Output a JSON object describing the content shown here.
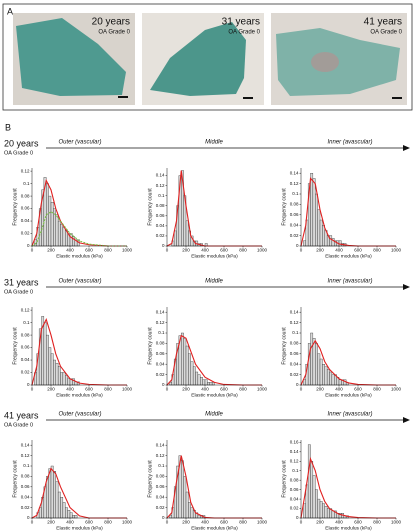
{
  "panel_a": {
    "label": "A",
    "images": [
      {
        "age": "20 years",
        "grade": "OA Grade 0"
      },
      {
        "age": "31 years",
        "grade": "OA Grade 0"
      },
      {
        "age": "41 years",
        "grade": "OA Grade 0"
      }
    ]
  },
  "panel_b": {
    "label": "B",
    "rows": [
      {
        "age": "20 years",
        "grade": "OA Grade 0",
        "zones": [
          "Outer (vascular)",
          "Middle",
          "Inner (avascular)"
        ]
      },
      {
        "age": "31 years",
        "grade": "OA Grade 0",
        "zones": [
          "Outer (vascular)",
          "Middle",
          "Inner (avascular)"
        ]
      },
      {
        "age": "41 years",
        "grade": "OA Grade 0",
        "zones": [
          "Outer (vascular)",
          "Middle",
          "Inner (avascular)"
        ]
      }
    ]
  },
  "chart_data": [
    {
      "type": "histogram",
      "xlabel": "Elastic modulus (kPa)",
      "ylabel": "Frequency count",
      "color": "#d9d9d9",
      "bins": [
        0,
        25,
        50,
        75,
        100,
        125,
        150,
        175,
        200,
        225,
        250,
        275,
        300,
        325,
        350,
        375,
        400,
        425,
        450,
        475,
        500
      ],
      "counts": [
        0,
        0.01,
        0.03,
        0.06,
        0.09,
        0.11,
        0.1,
        0.08,
        0.07,
        0.06,
        0.05,
        0.04,
        0.035,
        0.03,
        0.025,
        0.02,
        0.02,
        0.015,
        0.01,
        0.01
      ],
      "fits": [
        {
          "color": "#e02020",
          "x": [
            0,
            50,
            100,
            150,
            200,
            250,
            300,
            400,
            500,
            600,
            800,
            1000
          ],
          "y": [
            0,
            0.02,
            0.07,
            0.105,
            0.09,
            0.06,
            0.04,
            0.015,
            0.005,
            0.002,
            0,
            0
          ]
        },
        {
          "color": "#7ac143",
          "dashed": true,
          "x": [
            0,
            50,
            100,
            150,
            200,
            250,
            300,
            400,
            500,
            600,
            800,
            1000
          ],
          "y": [
            0,
            0.005,
            0.025,
            0.05,
            0.055,
            0.05,
            0.04,
            0.02,
            0.008,
            0.003,
            0,
            0
          ]
        }
      ],
      "xlim": [
        0,
        1000
      ],
      "xticks": [
        0,
        200,
        400,
        600,
        800,
        1000
      ],
      "ylim": [
        0,
        0.125
      ],
      "yticks": [
        0,
        0.02,
        0.04,
        0.06,
        0.08,
        0.1,
        0.12
      ]
    },
    {
      "type": "histogram",
      "xlabel": "Elastic modulus (kPa)",
      "ylabel": "Frequency count",
      "color": "#d9d9d9",
      "bins": [
        0,
        25,
        50,
        75,
        100,
        125,
        150,
        175,
        200,
        225,
        250,
        275,
        300,
        325,
        350,
        375,
        400,
        425,
        450,
        475,
        500
      ],
      "counts": [
        0,
        0,
        0.01,
        0.03,
        0.08,
        0.14,
        0.15,
        0.1,
        0.05,
        0.03,
        0.02,
        0.01,
        0.01,
        0.005,
        0.005,
        0,
        0.005,
        0,
        0,
        0
      ],
      "fits": [
        {
          "color": "#e02020",
          "x": [
            0,
            50,
            100,
            150,
            200,
            250,
            300,
            400,
            500,
            600,
            800,
            1000
          ],
          "y": [
            0,
            0.005,
            0.05,
            0.15,
            0.08,
            0.02,
            0.005,
            0,
            0,
            0,
            0,
            0
          ]
        }
      ],
      "xlim": [
        0,
        1000
      ],
      "xticks": [
        0,
        200,
        400,
        600,
        800,
        1000
      ],
      "ylim": [
        0,
        0.155
      ],
      "yticks": [
        0,
        0.02,
        0.04,
        0.06,
        0.08,
        0.1,
        0.12,
        0.14
      ]
    },
    {
      "type": "histogram",
      "xlabel": "Elastic modulus (kPa)",
      "ylabel": "Frequency count",
      "color": "#d9d9d9",
      "bins": [
        0,
        25,
        50,
        75,
        100,
        125,
        150,
        175,
        200,
        225,
        250,
        275,
        300,
        325,
        350,
        375,
        400,
        425,
        450,
        475,
        500
      ],
      "counts": [
        0,
        0.01,
        0.05,
        0.12,
        0.14,
        0.13,
        0.1,
        0.07,
        0.05,
        0.04,
        0.03,
        0.02,
        0.02,
        0.015,
        0.01,
        0.01,
        0.01,
        0.005,
        0.005,
        0
      ],
      "fits": [
        {
          "color": "#e02020",
          "x": [
            0,
            50,
            100,
            150,
            200,
            250,
            300,
            400,
            500,
            600,
            800,
            1000
          ],
          "y": [
            0,
            0.04,
            0.13,
            0.12,
            0.07,
            0.035,
            0.015,
            0.004,
            0.001,
            0,
            0,
            0
          ]
        }
      ],
      "xlim": [
        0,
        1000
      ],
      "xticks": [
        0,
        200,
        400,
        600,
        800,
        1000
      ],
      "ylim": [
        0,
        0.15
      ],
      "yticks": [
        0,
        0.02,
        0.04,
        0.06,
        0.08,
        0.1,
        0.12,
        0.14
      ]
    },
    {
      "type": "histogram",
      "xlabel": "Elastic modulus (kPa)",
      "ylabel": "Frequency count",
      "color": "#d9d9d9",
      "bins": [
        0,
        25,
        50,
        75,
        100,
        125,
        150,
        175,
        200,
        225,
        250,
        275,
        300,
        325,
        350,
        375,
        400,
        425,
        450,
        475,
        500
      ],
      "counts": [
        0,
        0.02,
        0.05,
        0.09,
        0.11,
        0.1,
        0.08,
        0.06,
        0.05,
        0.04,
        0.035,
        0.03,
        0.02,
        0.02,
        0.015,
        0.01,
        0.01,
        0.01,
        0.005,
        0.005
      ],
      "fits": [
        {
          "color": "#e02020",
          "x": [
            0,
            50,
            100,
            150,
            200,
            250,
            300,
            400,
            500,
            600,
            800,
            1000
          ],
          "y": [
            0,
            0.03,
            0.09,
            0.105,
            0.08,
            0.05,
            0.03,
            0.01,
            0.003,
            0.001,
            0,
            0
          ]
        }
      ],
      "xlim": [
        0,
        1000
      ],
      "xticks": [
        0,
        200,
        400,
        600,
        800,
        1000
      ],
      "ylim": [
        0,
        0.125
      ],
      "yticks": [
        0,
        0.02,
        0.04,
        0.06,
        0.08,
        0.1,
        0.12
      ]
    },
    {
      "type": "histogram",
      "xlabel": "Elastic modulus (kPa)",
      "ylabel": "Frequency count",
      "color": "#d9d9d9",
      "bins": [
        0,
        25,
        50,
        75,
        100,
        125,
        150,
        175,
        200,
        225,
        250,
        275,
        300,
        325,
        350,
        375,
        400,
        425,
        450,
        475,
        500
      ],
      "counts": [
        0,
        0.005,
        0.02,
        0.05,
        0.08,
        0.095,
        0.1,
        0.09,
        0.075,
        0.06,
        0.045,
        0.035,
        0.025,
        0.02,
        0.015,
        0.01,
        0.01,
        0.005,
        0.005,
        0.005
      ],
      "fits": [
        {
          "color": "#e02020",
          "x": [
            0,
            50,
            100,
            150,
            200,
            250,
            300,
            400,
            500,
            600,
            800,
            1000
          ],
          "y": [
            0,
            0.01,
            0.06,
            0.095,
            0.09,
            0.065,
            0.04,
            0.015,
            0.005,
            0.001,
            0,
            0
          ]
        }
      ],
      "xlim": [
        0,
        1000
      ],
      "xticks": [
        0,
        200,
        400,
        600,
        800,
        1000
      ],
      "ylim": [
        0,
        0.15
      ],
      "yticks": [
        0,
        0.02,
        0.04,
        0.06,
        0.08,
        0.1,
        0.12,
        0.14
      ]
    },
    {
      "type": "histogram",
      "xlabel": "Elastic modulus (kPa)",
      "ylabel": "Frequency count",
      "color": "#d9d9d9",
      "bins": [
        0,
        25,
        50,
        75,
        100,
        125,
        150,
        175,
        200,
        225,
        250,
        275,
        300,
        325,
        350,
        375,
        400,
        425,
        450,
        475,
        500
      ],
      "counts": [
        0,
        0.01,
        0.04,
        0.08,
        0.1,
        0.09,
        0.08,
        0.06,
        0.05,
        0.04,
        0.035,
        0.03,
        0.025,
        0.02,
        0.02,
        0.015,
        0.01,
        0.01,
        0.01,
        0.005
      ],
      "fits": [
        {
          "color": "#e02020",
          "x": [
            0,
            50,
            100,
            150,
            200,
            250,
            300,
            400,
            500,
            600,
            800,
            1000
          ],
          "y": [
            0,
            0.02,
            0.07,
            0.085,
            0.07,
            0.045,
            0.03,
            0.012,
            0.004,
            0.001,
            0,
            0
          ]
        }
      ],
      "xlim": [
        0,
        1000
      ],
      "xticks": [
        0,
        200,
        400,
        600,
        800,
        1000
      ],
      "ylim": [
        0,
        0.15
      ],
      "yticks": [
        0,
        0.02,
        0.04,
        0.06,
        0.08,
        0.1,
        0.12,
        0.14
      ]
    },
    {
      "type": "histogram",
      "xlabel": "Elastic modulus (kPa)",
      "ylabel": "Frequency count",
      "color": "#d9d9d9",
      "bins": [
        0,
        25,
        50,
        75,
        100,
        125,
        150,
        175,
        200,
        225,
        250,
        275,
        300,
        325,
        350,
        375,
        400,
        425,
        450,
        475,
        500
      ],
      "counts": [
        0,
        0,
        0.01,
        0.02,
        0.04,
        0.06,
        0.08,
        0.095,
        0.1,
        0.09,
        0.07,
        0.05,
        0.04,
        0.03,
        0.02,
        0.015,
        0.01,
        0.005,
        0.005,
        0
      ],
      "fits": [
        {
          "color": "#e02020",
          "x": [
            0,
            50,
            100,
            150,
            200,
            250,
            300,
            400,
            500,
            600,
            800,
            1000
          ],
          "y": [
            0,
            0.005,
            0.03,
            0.07,
            0.095,
            0.085,
            0.06,
            0.02,
            0.004,
            0,
            0,
            0
          ]
        }
      ],
      "xlim": [
        0,
        1000
      ],
      "xticks": [
        0,
        200,
        400,
        600,
        800,
        1000
      ],
      "ylim": [
        0,
        0.15
      ],
      "yticks": [
        0,
        0.02,
        0.04,
        0.06,
        0.08,
        0.1,
        0.12,
        0.14
      ]
    },
    {
      "type": "histogram",
      "xlabel": "Elastic modulus (kPa)",
      "ylabel": "Frequency count",
      "color": "#d9d9d9",
      "bins": [
        0,
        25,
        50,
        75,
        100,
        125,
        150,
        175,
        200,
        225,
        250,
        275,
        300,
        325,
        350,
        375,
        400,
        425,
        450,
        475,
        500
      ],
      "counts": [
        0,
        0.005,
        0.02,
        0.06,
        0.1,
        0.12,
        0.11,
        0.08,
        0.05,
        0.03,
        0.02,
        0.015,
        0.01,
        0.005,
        0.005,
        0.005,
        0,
        0,
        0,
        0
      ],
      "fits": [
        {
          "color": "#e02020",
          "x": [
            0,
            50,
            100,
            150,
            200,
            250,
            300,
            400,
            500,
            600,
            800,
            1000
          ],
          "y": [
            0,
            0.01,
            0.07,
            0.12,
            0.08,
            0.03,
            0.01,
            0.001,
            0,
            0,
            0,
            0
          ]
        }
      ],
      "xlim": [
        0,
        1000
      ],
      "xticks": [
        0,
        200,
        400,
        600,
        800,
        1000
      ],
      "ylim": [
        0,
        0.15
      ],
      "yticks": [
        0,
        0.02,
        0.04,
        0.06,
        0.08,
        0.1,
        0.12,
        0.14
      ]
    },
    {
      "type": "histogram",
      "xlabel": "Elastic modulus (kPa)",
      "ylabel": "Frequency count",
      "color": "#d9d9d9",
      "bins": [
        0,
        25,
        50,
        75,
        100,
        125,
        150,
        175,
        200,
        225,
        250,
        275,
        300,
        325,
        350,
        375,
        400,
        425,
        450,
        475,
        500
      ],
      "counts": [
        0,
        0.03,
        0.07,
        0.155,
        0.12,
        0.09,
        0.06,
        0.04,
        0.035,
        0.03,
        0.025,
        0.02,
        0.02,
        0.015,
        0.015,
        0.01,
        0.01,
        0.01,
        0.005,
        0.005
      ],
      "fits": [
        {
          "color": "#e02020",
          "x": [
            0,
            50,
            100,
            150,
            200,
            250,
            300,
            400,
            500,
            600,
            800,
            1000
          ],
          "y": [
            0,
            0.06,
            0.125,
            0.1,
            0.06,
            0.035,
            0.02,
            0.008,
            0.003,
            0.001,
            0,
            0
          ]
        }
      ],
      "xlim": [
        0,
        1000
      ],
      "xticks": [
        0,
        200,
        400,
        600,
        800,
        1000
      ],
      "ylim": [
        0,
        0.165
      ],
      "yticks": [
        0,
        0.02,
        0.04,
        0.06,
        0.08,
        0.1,
        0.12,
        0.14,
        0.16
      ]
    }
  ]
}
